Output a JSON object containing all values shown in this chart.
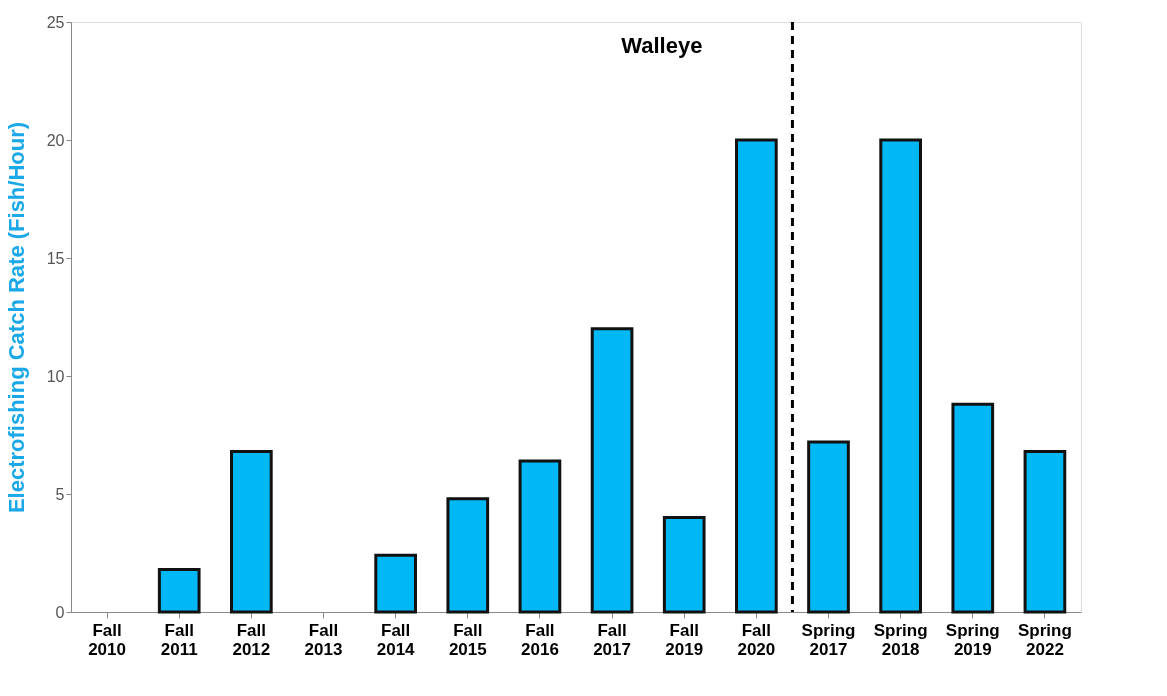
{
  "chart_data": {
    "type": "bar",
    "title": "Walleye",
    "ylabel": "Electrofishing Catch Rate (Fish/Hour)",
    "categories": [
      "Fall 2010",
      "Fall 2011",
      "Fall 2012",
      "Fall 2013",
      "Fall 2014",
      "Fall 2015",
      "Fall 2016",
      "Fall 2017",
      "Fall 2019",
      "Fall 2020",
      "Spring 2017",
      "Spring 2018",
      "Spring 2019",
      "Spring 2022"
    ],
    "values": [
      0,
      1.8,
      6.8,
      0,
      2.4,
      4.8,
      6.4,
      12,
      4,
      20,
      7.2,
      20,
      8.8,
      6.8
    ],
    "color": "#00b8f5",
    "ylim": [
      0,
      25
    ],
    "yticks": [
      0,
      5,
      10,
      15,
      20,
      25
    ],
    "grid": false
  }
}
